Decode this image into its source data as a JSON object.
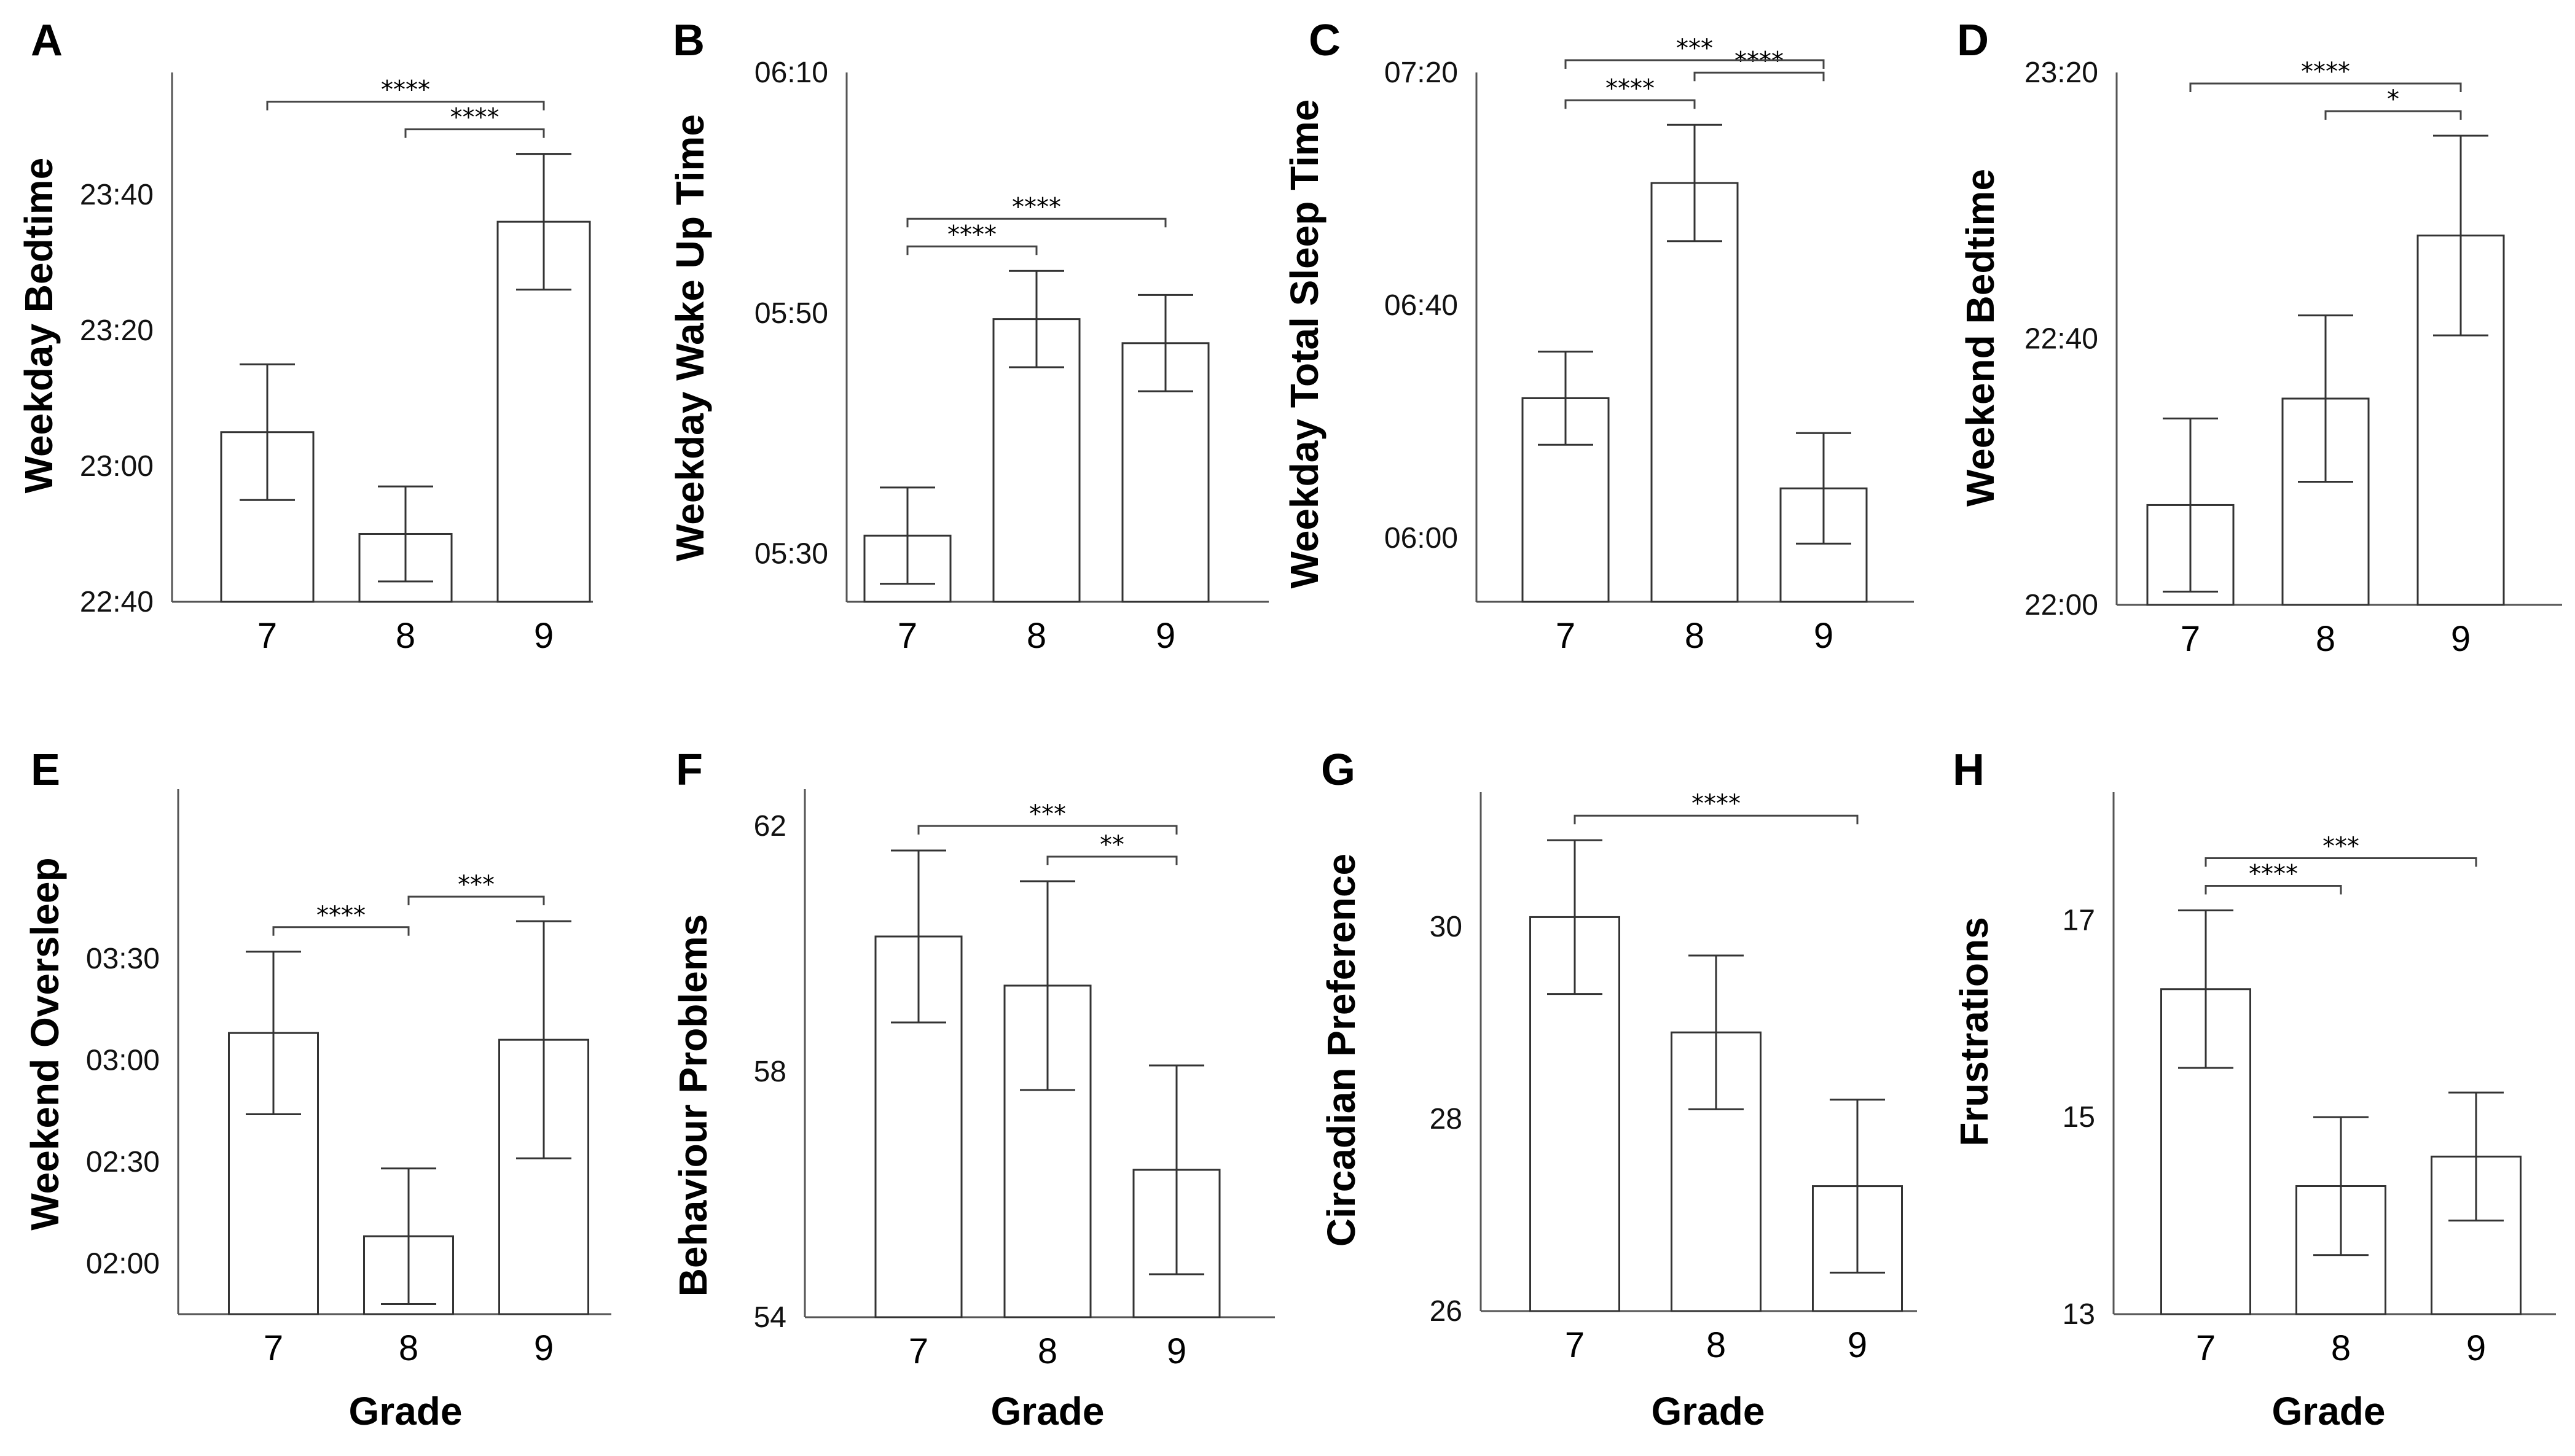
{
  "chart_data": [
    {
      "panel": "A",
      "type": "bar",
      "ylabel": "Weekday Bedtime",
      "xlabel": "",
      "categories": [
        "7",
        "8",
        "9"
      ],
      "values": [
        1385,
        1370,
        1416
      ],
      "errors": [
        10,
        7,
        10
      ],
      "ylim": [
        1360,
        1438
      ],
      "ticks": [
        1360,
        1380,
        1400,
        1420
      ],
      "tick_labels": [
        "22:40",
        "23:00",
        "23:20",
        "23:40"
      ],
      "significance": [
        {
          "from": 0,
          "to": 2,
          "label": "****"
        },
        {
          "from": 1,
          "to": 2,
          "label": "****"
        }
      ]
    },
    {
      "panel": "B",
      "type": "bar",
      "ylabel": "Weekday Wake Up Time",
      "xlabel": "",
      "categories": [
        "7",
        "8",
        "9"
      ],
      "values": [
        331.5,
        349.5,
        347.5
      ],
      "errors": [
        4,
        4,
        4
      ],
      "ylim": [
        326,
        370
      ],
      "ticks": [
        330,
        350,
        370
      ],
      "tick_labels": [
        "05:30",
        "05:50",
        "06:10"
      ],
      "significance": [
        {
          "from": 0,
          "to": 1,
          "label": "****"
        },
        {
          "from": 0,
          "to": 2,
          "label": "****"
        }
      ]
    },
    {
      "panel": "C",
      "type": "bar",
      "ylabel": "Weekday Total Sleep Time",
      "xlabel": "",
      "categories": [
        "7",
        "8",
        "9"
      ],
      "values": [
        384,
        421,
        368.5
      ],
      "errors": [
        8,
        10,
        9.5
      ],
      "ylim": [
        349,
        440
      ],
      "ticks": [
        360,
        400,
        440
      ],
      "tick_labels": [
        "06:00",
        "06:40",
        "07:20"
      ],
      "significance": [
        {
          "from": 0,
          "to": 1,
          "label": "****"
        },
        {
          "from": 1,
          "to": 2,
          "label": "****"
        },
        {
          "from": 0,
          "to": 2,
          "label": "***"
        }
      ]
    },
    {
      "panel": "D",
      "type": "bar",
      "ylabel": "Weekend Bedtime",
      "xlabel": "",
      "categories": [
        "7",
        "8",
        "9"
      ],
      "values": [
        1335,
        1351,
        1375.5
      ],
      "errors": [
        13,
        12.5,
        15
      ],
      "ylim": [
        1320,
        1400
      ],
      "ticks": [
        1320,
        1360,
        1400
      ],
      "tick_labels": [
        "22:00",
        "22:40",
        "23:20"
      ],
      "significance": [
        {
          "from": 0,
          "to": 2,
          "label": "****"
        },
        {
          "from": 1,
          "to": 2,
          "label": "*"
        }
      ]
    },
    {
      "panel": "E",
      "type": "bar",
      "ylabel": "Weekend Oversleep",
      "xlabel": "Grade",
      "categories": [
        "7",
        "8",
        "9"
      ],
      "values": [
        188,
        128,
        186
      ],
      "errors": [
        24,
        20,
        35
      ],
      "ylim": [
        105,
        260
      ],
      "ticks": [
        120,
        150,
        180,
        210
      ],
      "tick_labels": [
        "02:00",
        "02:30",
        "03:00",
        "03:30"
      ],
      "significance": [
        {
          "from": 0,
          "to": 1,
          "label": "****"
        },
        {
          "from": 1,
          "to": 2,
          "label": "***"
        }
      ]
    },
    {
      "panel": "F",
      "type": "bar",
      "ylabel": "Behaviour  Problems",
      "xlabel": "Grade",
      "categories": [
        "7",
        "8",
        "9"
      ],
      "values": [
        60.2,
        59.4,
        56.4
      ],
      "errors": [
        1.4,
        1.7,
        1.7
      ],
      "ylim": [
        54,
        62.6
      ],
      "ticks": [
        54,
        58,
        62
      ],
      "tick_labels": [
        "54",
        "58",
        "62"
      ],
      "significance": [
        {
          "from": 0,
          "to": 2,
          "label": "***"
        },
        {
          "from": 1,
          "to": 2,
          "label": "**"
        }
      ]
    },
    {
      "panel": "G",
      "type": "bar",
      "ylabel": "Circadian Preference",
      "xlabel": "Grade",
      "categories": [
        "7",
        "8",
        "9"
      ],
      "values": [
        30.1,
        28.9,
        27.3
      ],
      "errors": [
        0.8,
        0.8,
        0.9
      ],
      "ylim": [
        26,
        31.4
      ],
      "ticks": [
        26,
        28,
        30
      ],
      "tick_labels": [
        "26",
        "28",
        "30"
      ],
      "significance": [
        {
          "from": 0,
          "to": 2,
          "label": "****"
        }
      ]
    },
    {
      "panel": "H",
      "type": "bar",
      "ylabel": "Frustrations",
      "xlabel": "Grade",
      "categories": [
        "7",
        "8",
        "9"
      ],
      "values": [
        16.3,
        14.3,
        14.6
      ],
      "errors": [
        0.8,
        0.7,
        0.65
      ],
      "ylim": [
        13,
        18.3
      ],
      "ticks": [
        13,
        15,
        17
      ],
      "tick_labels": [
        "13",
        "15",
        "17"
      ],
      "significance": [
        {
          "from": 0,
          "to": 1,
          "label": "****"
        },
        {
          "from": 0,
          "to": 2,
          "label": "***"
        }
      ]
    }
  ]
}
